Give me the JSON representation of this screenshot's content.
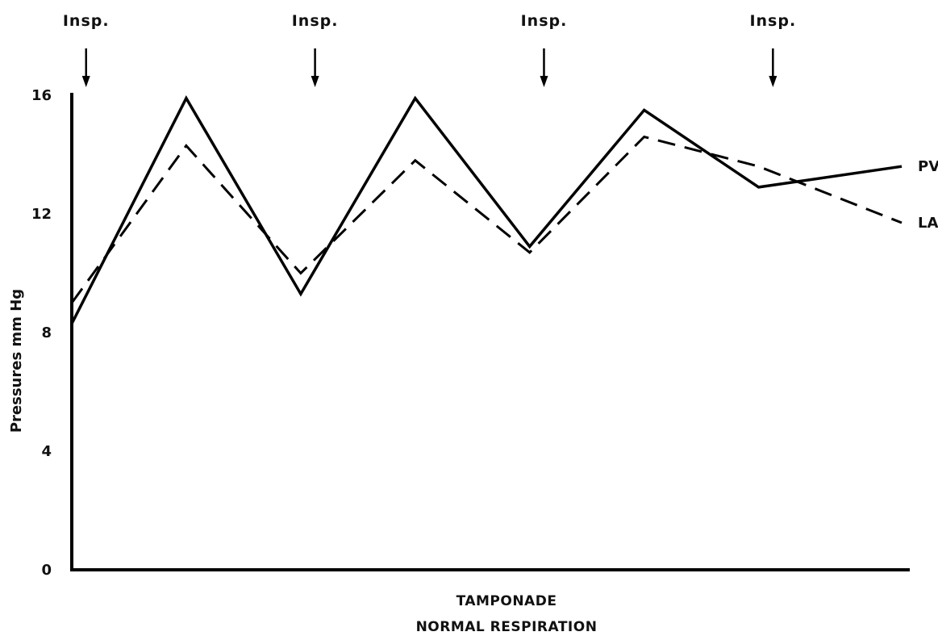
{
  "chart_data": {
    "type": "line",
    "title": "TAMPONADE",
    "subtitle": "NORMAL RESPIRATION",
    "xlabel": "",
    "ylabel": "Pressures  mm Hg",
    "ylim": [
      0,
      16
    ],
    "yticks": [
      0,
      4,
      8,
      12,
      16
    ],
    "grid": false,
    "annotations": {
      "label": "Insp.",
      "x": [
        0.5,
        8.5,
        16.5,
        24.5
      ]
    },
    "xlim": [
      0,
      29
    ],
    "series": [
      {
        "name": "PV",
        "style": "solid",
        "x": [
          0,
          4,
          8,
          12,
          16,
          20,
          24,
          29
        ],
        "y": [
          8.3,
          15.9,
          9.3,
          15.9,
          10.9,
          15.5,
          12.9,
          13.6
        ]
      },
      {
        "name": "LA",
        "style": "dashed",
        "x": [
          0,
          4,
          8,
          12,
          16,
          20,
          24,
          29
        ],
        "y": [
          9.0,
          14.3,
          10.0,
          13.8,
          10.7,
          14.6,
          13.6,
          11.7
        ]
      }
    ]
  }
}
